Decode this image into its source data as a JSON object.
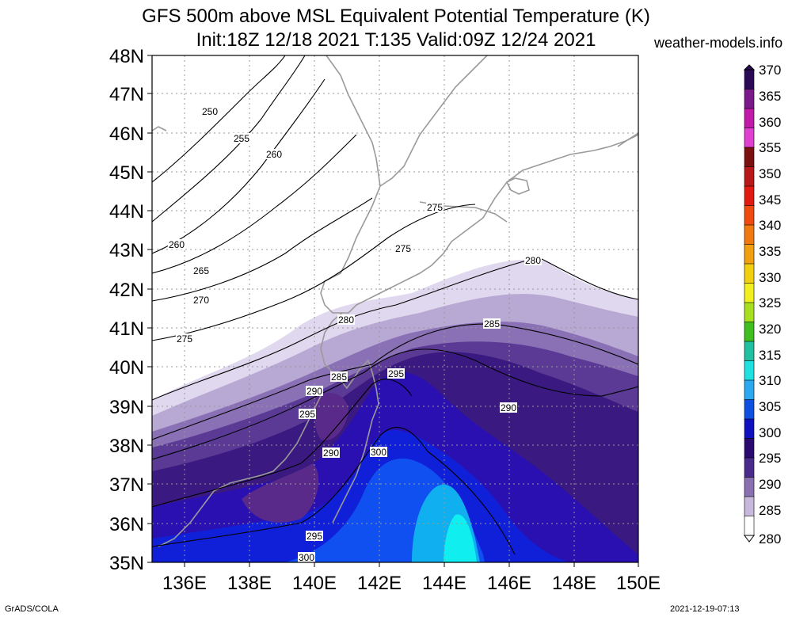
{
  "title_line1": "GFS 500m above MSL Equivalent Potential Temperature (K)",
  "title_line2": "Init:18Z 12/18 2021 T:135 Valid:09Z 12/24 2021",
  "site": "weather-models.info",
  "footer_left": "GrADS/COLA",
  "footer_right": "2021-12-19-07:13",
  "lat_labels": [
    "48N",
    "47N",
    "46N",
    "45N",
    "44N",
    "43N",
    "42N",
    "41N",
    "40N",
    "39N",
    "38N",
    "37N",
    "36N",
    "35N"
  ],
  "lon_labels": [
    "136E",
    "138E",
    "140E",
    "142E",
    "144E",
    "146E",
    "148E",
    "150E"
  ],
  "colorbar_labels": [
    "370",
    "365",
    "360",
    "355",
    "350",
    "345",
    "340",
    "335",
    "330",
    "325",
    "320",
    "315",
    "310",
    "305",
    "300",
    "295",
    "290",
    "285",
    "280"
  ],
  "colorbar_colors": [
    "#2a0a55",
    "#7a1a8a",
    "#c21aa8",
    "#e040d0",
    "#7a1010",
    "#b81818",
    "#e01a10",
    "#f04a10",
    "#f07a10",
    "#f0a010",
    "#f0d010",
    "#f0f020",
    "#a8e020",
    "#40c020",
    "#20c0a0",
    "#20e0e0",
    "#2aa8f0",
    "#1050e0",
    "#1010c0",
    "#2a0a70",
    "#4a2a8a",
    "#8a70b0",
    "#c8b8dc",
    "#ffffff"
  ],
  "contour_labels": [
    "250",
    "255",
    "260",
    "260",
    "265",
    "270",
    "275",
    "275",
    "275",
    "280",
    "280",
    "285",
    "285",
    "285",
    "290",
    "290",
    "290",
    "295",
    "295",
    "295",
    "300",
    "300"
  ],
  "chart_data": {
    "type": "heatmap",
    "variable": "500m above MSL Equivalent Potential Temperature (K)",
    "lon_range": [
      135,
      150
    ],
    "lat_range": [
      35,
      48
    ],
    "colorbar_range": [
      280,
      370
    ],
    "colorbar_step": 5,
    "contour_values": [
      250,
      255,
      260,
      265,
      270,
      275,
      280,
      285,
      290,
      295,
      300
    ]
  }
}
